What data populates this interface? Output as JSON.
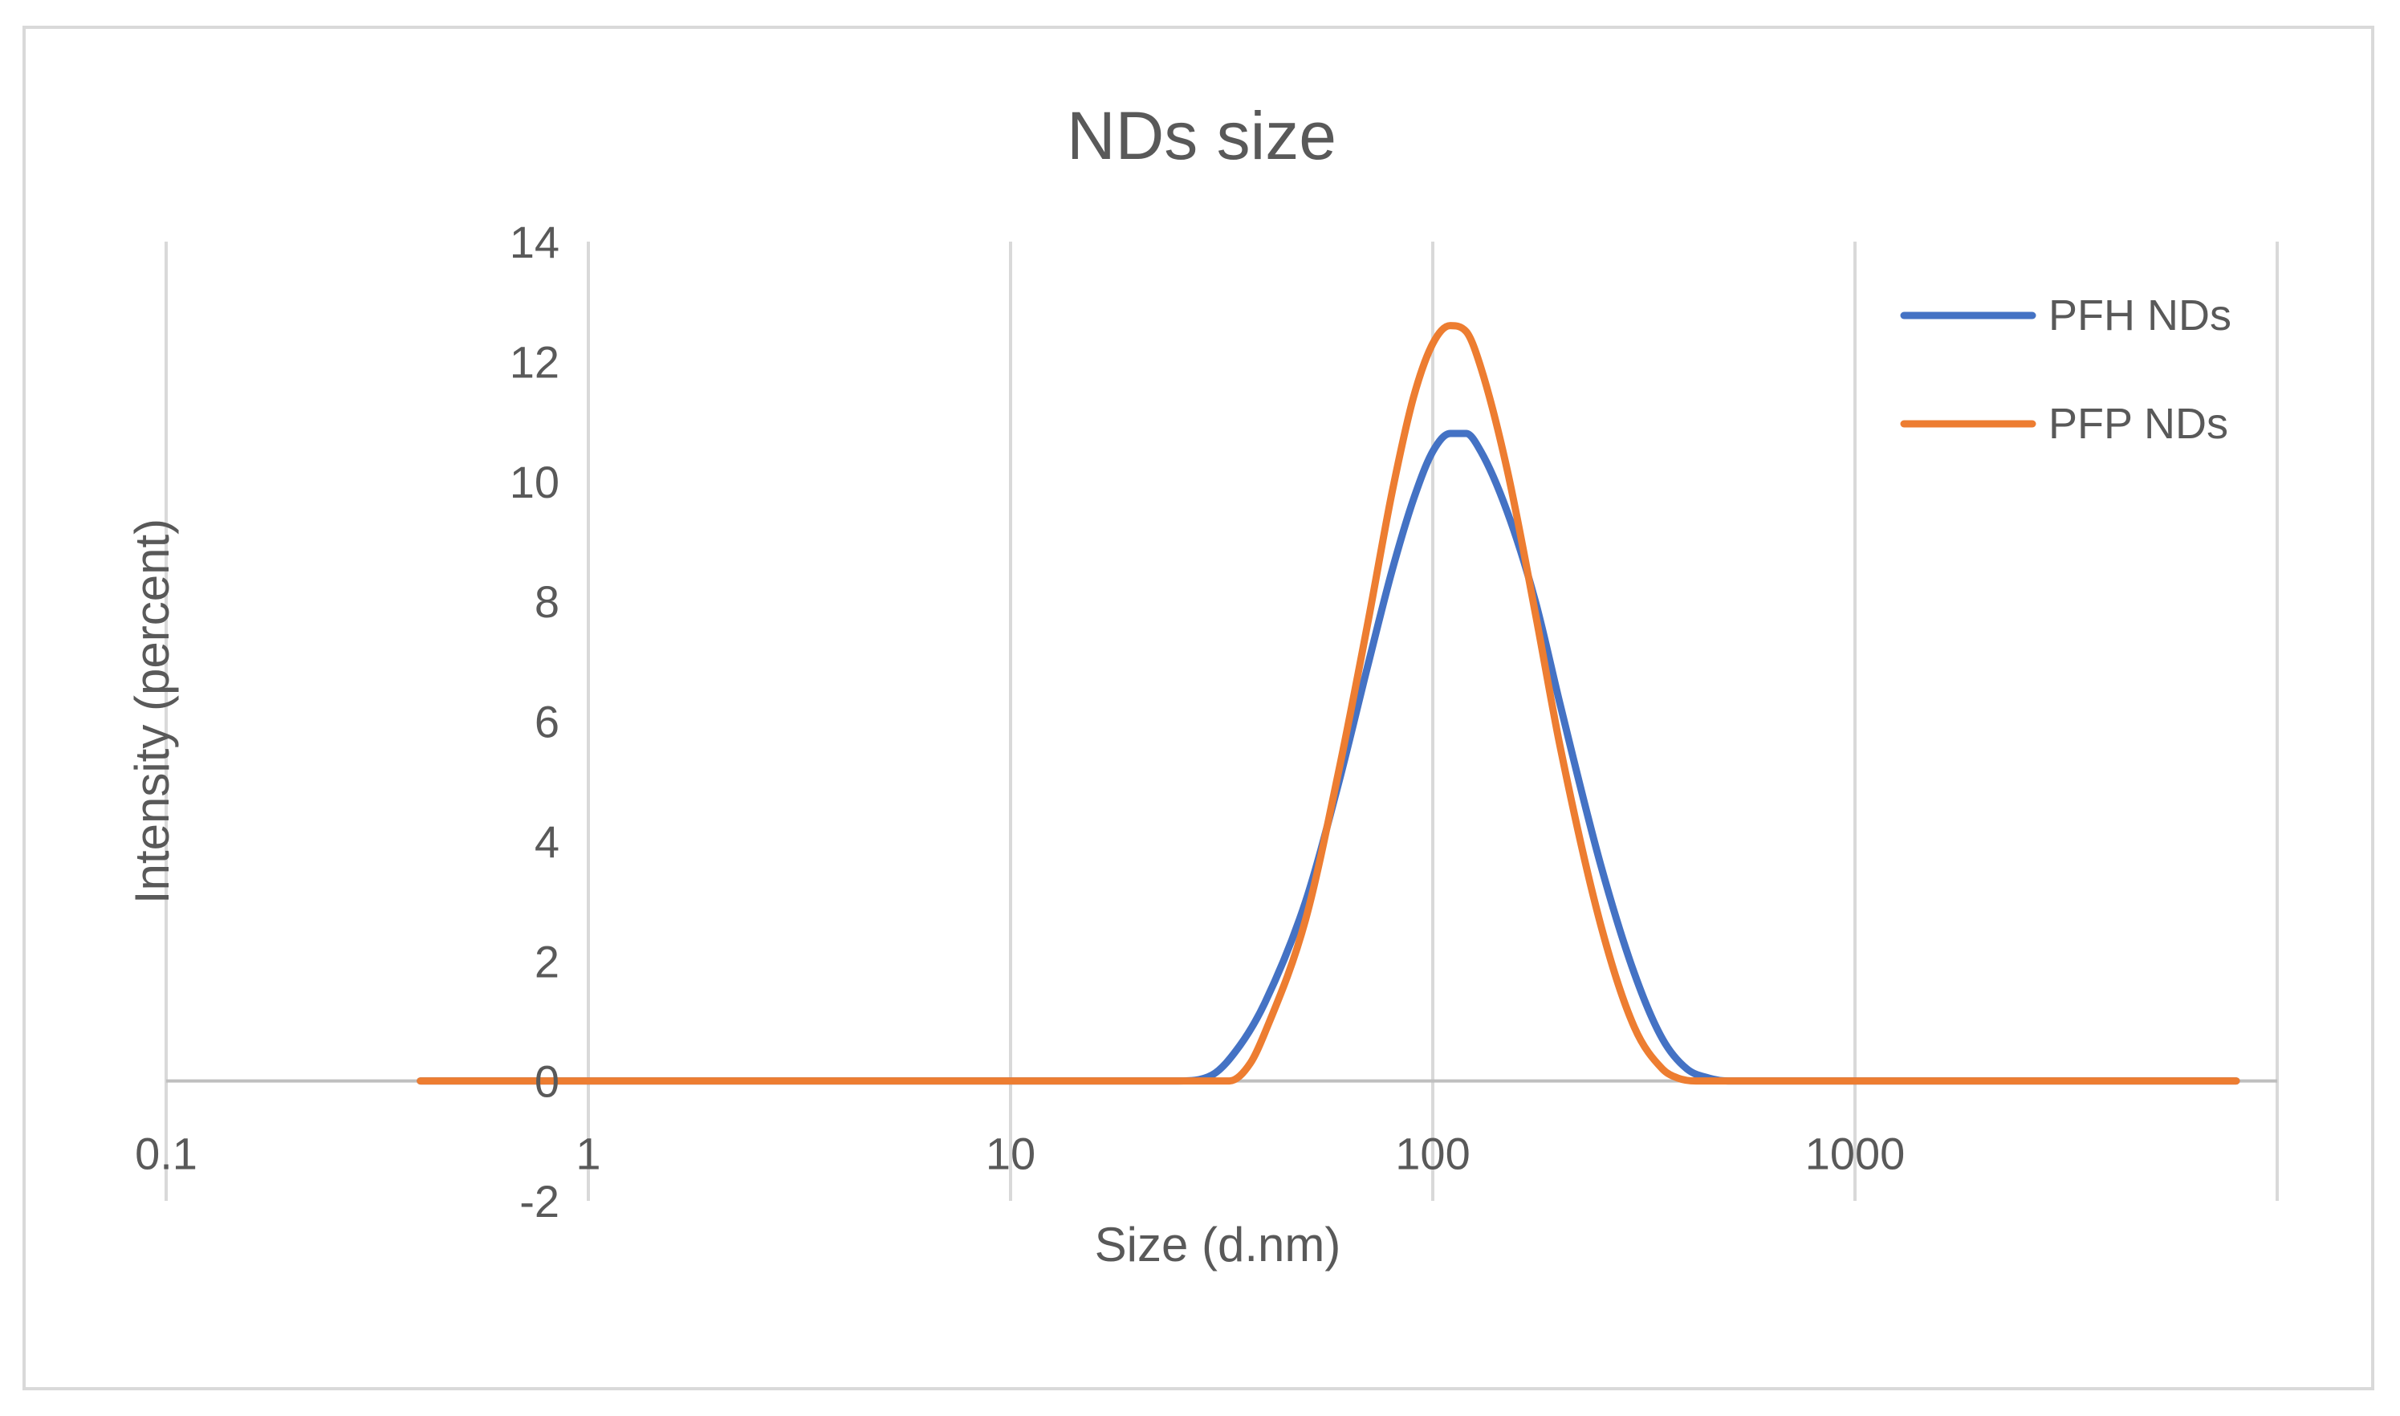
{
  "chart_data": {
    "type": "line",
    "title": "NDs size",
    "xlabel": "Size (d.nm)",
    "ylabel": "Intensity (percent)",
    "xscale": "log",
    "xlim": [
      0.1,
      10000
    ],
    "ylim": [
      -2,
      14
    ],
    "x_ticks": [
      "0.1",
      "1",
      "10",
      "100",
      "1000"
    ],
    "y_ticks": [
      "-2",
      "0",
      "2",
      "4",
      "6",
      "8",
      "10",
      "12",
      "14"
    ],
    "grid": "vertical",
    "legend_position": "top-right",
    "series": [
      {
        "name": "PFH NDs",
        "color": "#4472c4",
        "x": [
          0.4,
          1,
          10,
          25,
          30,
          35,
          40,
          50,
          60,
          70,
          80,
          90,
          100,
          110,
          120,
          130,
          150,
          175,
          200,
          250,
          300,
          350,
          400,
          450,
          500,
          1000,
          8000
        ],
        "y": [
          0,
          0,
          0,
          0,
          0.1,
          0.6,
          1.3,
          3.0,
          5.0,
          6.9,
          8.5,
          9.7,
          10.5,
          10.8,
          10.8,
          10.5,
          9.5,
          8.0,
          6.3,
          3.6,
          1.8,
          0.7,
          0.2,
          0.05,
          0,
          0,
          0
        ]
      },
      {
        "name": "PFP NDs",
        "color": "#ed7d31",
        "x": [
          0.4,
          1,
          10,
          25,
          33,
          37,
          40,
          50,
          60,
          70,
          80,
          90,
          100,
          110,
          120,
          130,
          150,
          175,
          200,
          250,
          300,
          350,
          380,
          420,
          500,
          1000,
          8000
        ],
        "y": [
          0,
          0,
          0,
          0,
          0,
          0.3,
          0.8,
          2.7,
          5.2,
          7.6,
          9.8,
          11.4,
          12.3,
          12.6,
          12.5,
          11.9,
          10.2,
          7.8,
          5.6,
          2.6,
          0.9,
          0.2,
          0.05,
          0,
          0,
          0,
          0
        ]
      }
    ]
  }
}
